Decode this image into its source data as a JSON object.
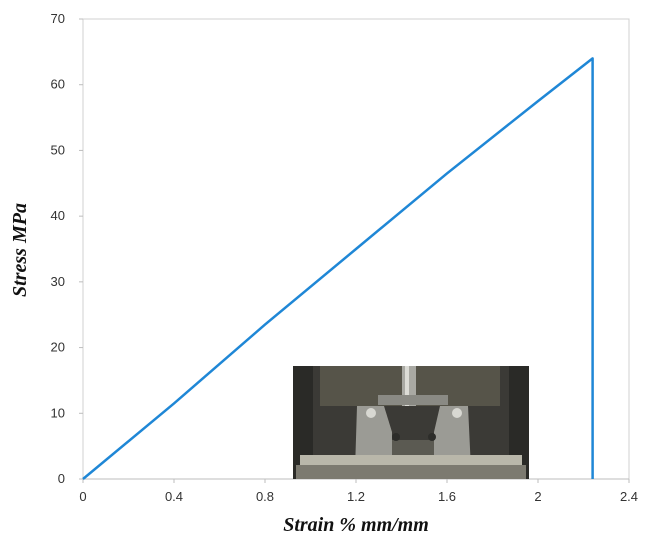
{
  "chart_data": {
    "type": "line",
    "title": "",
    "xlabel": "Strain % mm/mm",
    "ylabel": "Stress MPa",
    "xlim": [
      0,
      2.4
    ],
    "ylim": [
      0,
      70
    ],
    "x_ticks": [
      0,
      0.4,
      0.8,
      1.2,
      1.6,
      2,
      2.4
    ],
    "x_tick_labels": [
      "0",
      "0.4",
      "0.8",
      "1.2",
      "1.6",
      "2",
      "2.4"
    ],
    "y_ticks": [
      0,
      10,
      20,
      30,
      40,
      50,
      60,
      70
    ],
    "y_tick_labels": [
      "0",
      "10",
      "20",
      "30",
      "40",
      "50",
      "60",
      "70"
    ],
    "grid": false,
    "legend": "none",
    "series": [
      {
        "color": "#1f87d6",
        "x": [
          0,
          0.4,
          0.8,
          1.2,
          1.6,
          2.0,
          2.24,
          2.24
        ],
        "y": [
          0,
          11.5,
          23.5,
          35.0,
          46.5,
          57.5,
          64,
          0
        ]
      }
    ],
    "inset_image": "tensile-test-grip-photo"
  }
}
